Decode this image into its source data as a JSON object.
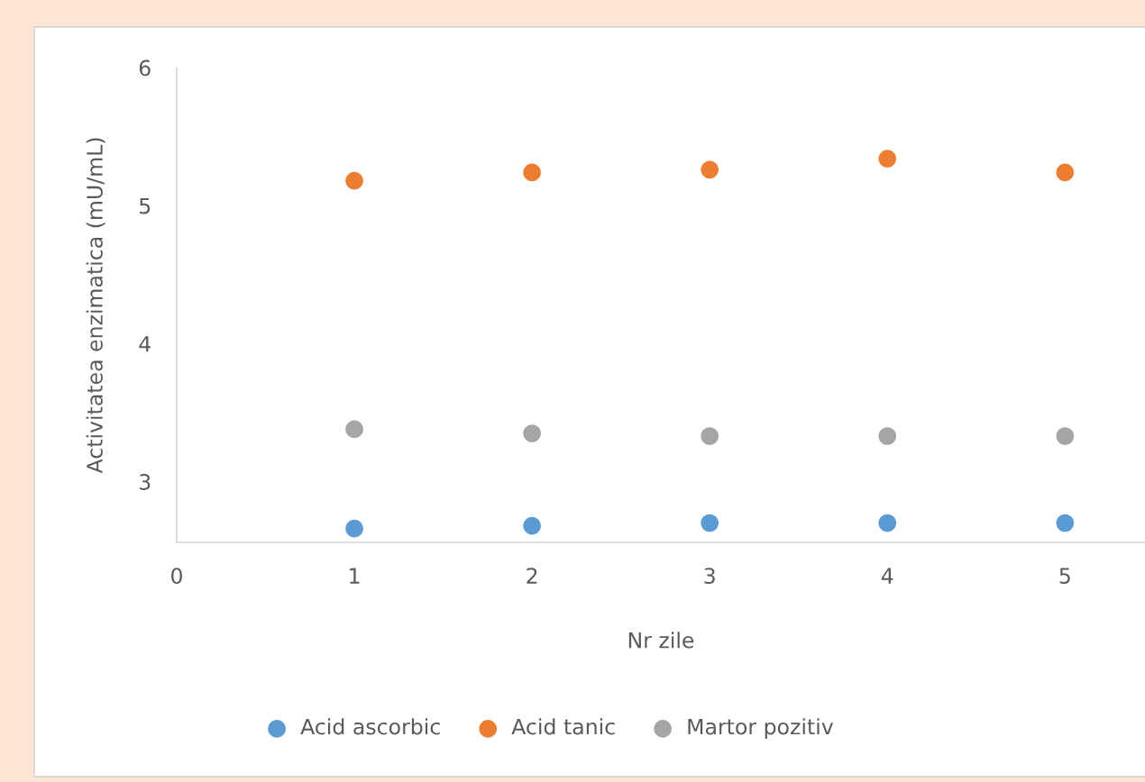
{
  "chart_data": {
    "type": "scatter",
    "xlabel": "Nr zile",
    "ylabel": "Activitatea enzimatica (mU/mL)",
    "x": [
      1,
      2,
      3,
      4,
      5
    ],
    "series": [
      {
        "name": "Acid ascorbic",
        "color": "#5b9bd5",
        "values": [
          2.66,
          2.68,
          2.7,
          2.7,
          2.7
        ]
      },
      {
        "name": "Acid tanic",
        "color": "#ed7d31",
        "values": [
          5.18,
          5.24,
          5.26,
          5.34,
          5.24
        ]
      },
      {
        "name": "Martor pozitiv",
        "color": "#a5a5a5",
        "values": [
          3.38,
          3.35,
          3.33,
          3.33,
          3.33
        ]
      }
    ],
    "xlim": [
      0,
      5.45
    ],
    "xticks": [
      0,
      1,
      2,
      3,
      4,
      5
    ],
    "ylim": [
      2.56,
      6
    ],
    "yticks": [
      3,
      4,
      5,
      6
    ],
    "grid": false,
    "legend": "bottom",
    "marker": "circle"
  }
}
